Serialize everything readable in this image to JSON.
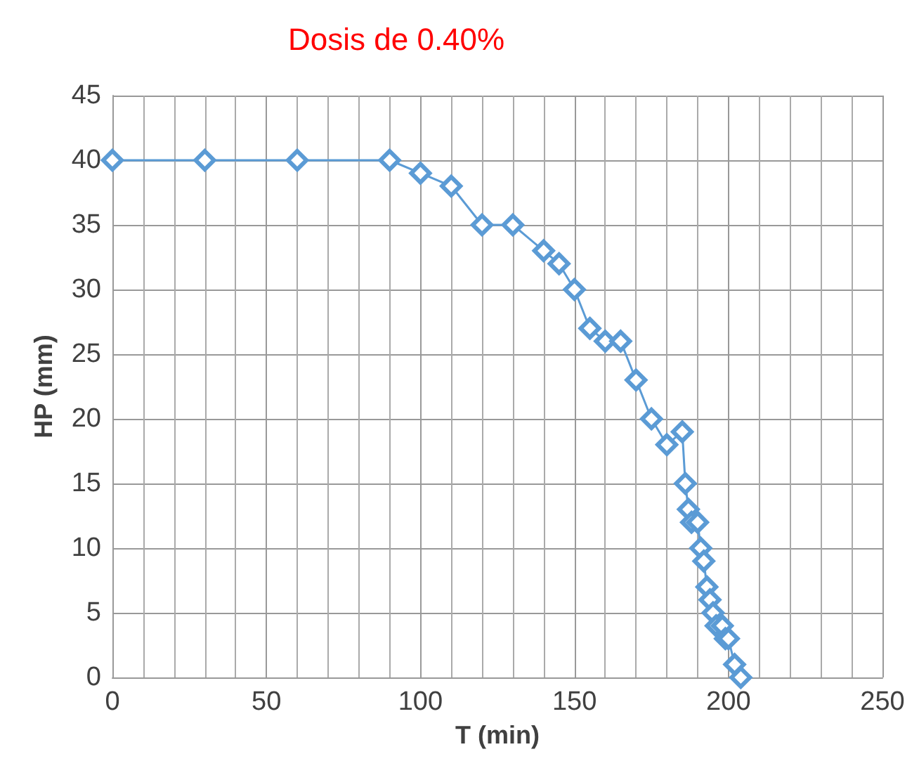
{
  "chart_data": {
    "type": "line",
    "title": "Dosis de 0.40%",
    "xlabel": "T (min)",
    "ylabel": "HP (mm)",
    "x": [
      0,
      30,
      60,
      90,
      100,
      110,
      120,
      130,
      140,
      145,
      150,
      155,
      160,
      165,
      170,
      175,
      180,
      185,
      186,
      187,
      188,
      190,
      191,
      192,
      193,
      194,
      195,
      196,
      198,
      199,
      200,
      202,
      204
    ],
    "series": [
      {
        "color": "#5b9bd5",
        "values": [
          40,
          40,
          40,
          40,
          39,
          38,
          35,
          35,
          33,
          32,
          30,
          27,
          26,
          26,
          23,
          20,
          18,
          19,
          15,
          13,
          12,
          12,
          10,
          9,
          7,
          6,
          5,
          4,
          4,
          3,
          3,
          1,
          0
        ]
      }
    ],
    "xlim": [
      0,
      250
    ],
    "xticks": [
      0,
      50,
      100,
      150,
      200,
      250
    ],
    "ylim": [
      0,
      45
    ],
    "yticks": [
      0,
      5,
      10,
      15,
      20,
      25,
      30,
      35,
      40,
      45
    ],
    "grid": true,
    "marker": "diamond",
    "line_style": "solid"
  }
}
